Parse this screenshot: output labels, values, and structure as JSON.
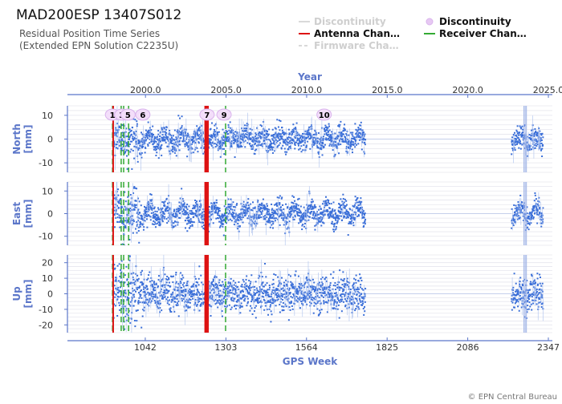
{
  "header": {
    "title": "MAD200ESP 13407S012",
    "subtitle_line1": "Residual Position Time Series",
    "subtitle_line2": "(Extended EPN Solution C2235U)"
  },
  "legend": [
    {
      "label": "Discontinuity",
      "style": "line",
      "color": "#d9d9d9",
      "muted": true
    },
    {
      "label": "Discontinuity",
      "style": "circle",
      "color": "#e7c9f3",
      "muted": false
    },
    {
      "label": "Antenna Chan…",
      "style": "line",
      "color": "#dd1111",
      "muted": false
    },
    {
      "label": "Receiver Chan…",
      "style": "line",
      "color": "#33aa33",
      "muted": false
    },
    {
      "label": "Firmware Cha…",
      "style": "dash",
      "color": "#d9d9d9",
      "muted": true
    }
  ],
  "credit": "© EPN Central Bureau",
  "chart_data": {
    "type": "scatter",
    "top_axis": {
      "label": "Year",
      "ticks": [
        "2000.0",
        "2005.0",
        "2010.0",
        "2015.0",
        "2020.0",
        "2025.0"
      ],
      "tick_values": [
        2000.0,
        2005.0,
        2010.0,
        2015.0,
        2020.0,
        2025.0
      ]
    },
    "bottom_axis": {
      "label": "GPS Week",
      "ticks": [
        "1042",
        "1303",
        "1564",
        "1825",
        "2086",
        "2347"
      ],
      "tick_values": [
        1042,
        1303,
        1564,
        1825,
        2086,
        2347
      ],
      "range": [
        790,
        2360
      ]
    },
    "panels": [
      {
        "name": "North",
        "ylabel": "North\n[mm]",
        "ylim": [
          -14,
          14
        ],
        "yticks": [
          -10,
          0,
          10
        ],
        "noise": 2.5,
        "wave": 2.0,
        "seed": 11
      },
      {
        "name": "East",
        "ylabel": "East\n[mm]",
        "ylim": [
          -14,
          14
        ],
        "yticks": [
          -10,
          0,
          10
        ],
        "noise": 2.5,
        "wave": 2.5,
        "seed": 29
      },
      {
        "name": "Up",
        "ylabel": "Up\n[mm]",
        "ylim": [
          -25,
          25
        ],
        "yticks": [
          -20,
          -10,
          0,
          10,
          20
        ],
        "noise": 5.5,
        "wave": 2.0,
        "seed": 47
      }
    ],
    "data_segments": [
      [
        940,
        1755
      ],
      [
        2228,
        2330
      ]
    ],
    "discontinuities": [
      {
        "label": "1",
        "week": 936
      },
      {
        "label": "3",
        "week": 966
      },
      {
        "label": "5",
        "week": 986
      },
      {
        "label": "6",
        "week": 1034
      },
      {
        "label": "7",
        "week": 1242
      },
      {
        "label": "9",
        "week": 1297
      },
      {
        "label": "10",
        "week": 1621
      }
    ],
    "antenna_changes": [
      938,
      1236,
      1240,
      1245
    ],
    "receiver_changes": [
      936,
      964,
      972,
      988,
      1302
    ],
    "discontinuity_lines": [
      2268,
      2272,
      2276
    ]
  }
}
